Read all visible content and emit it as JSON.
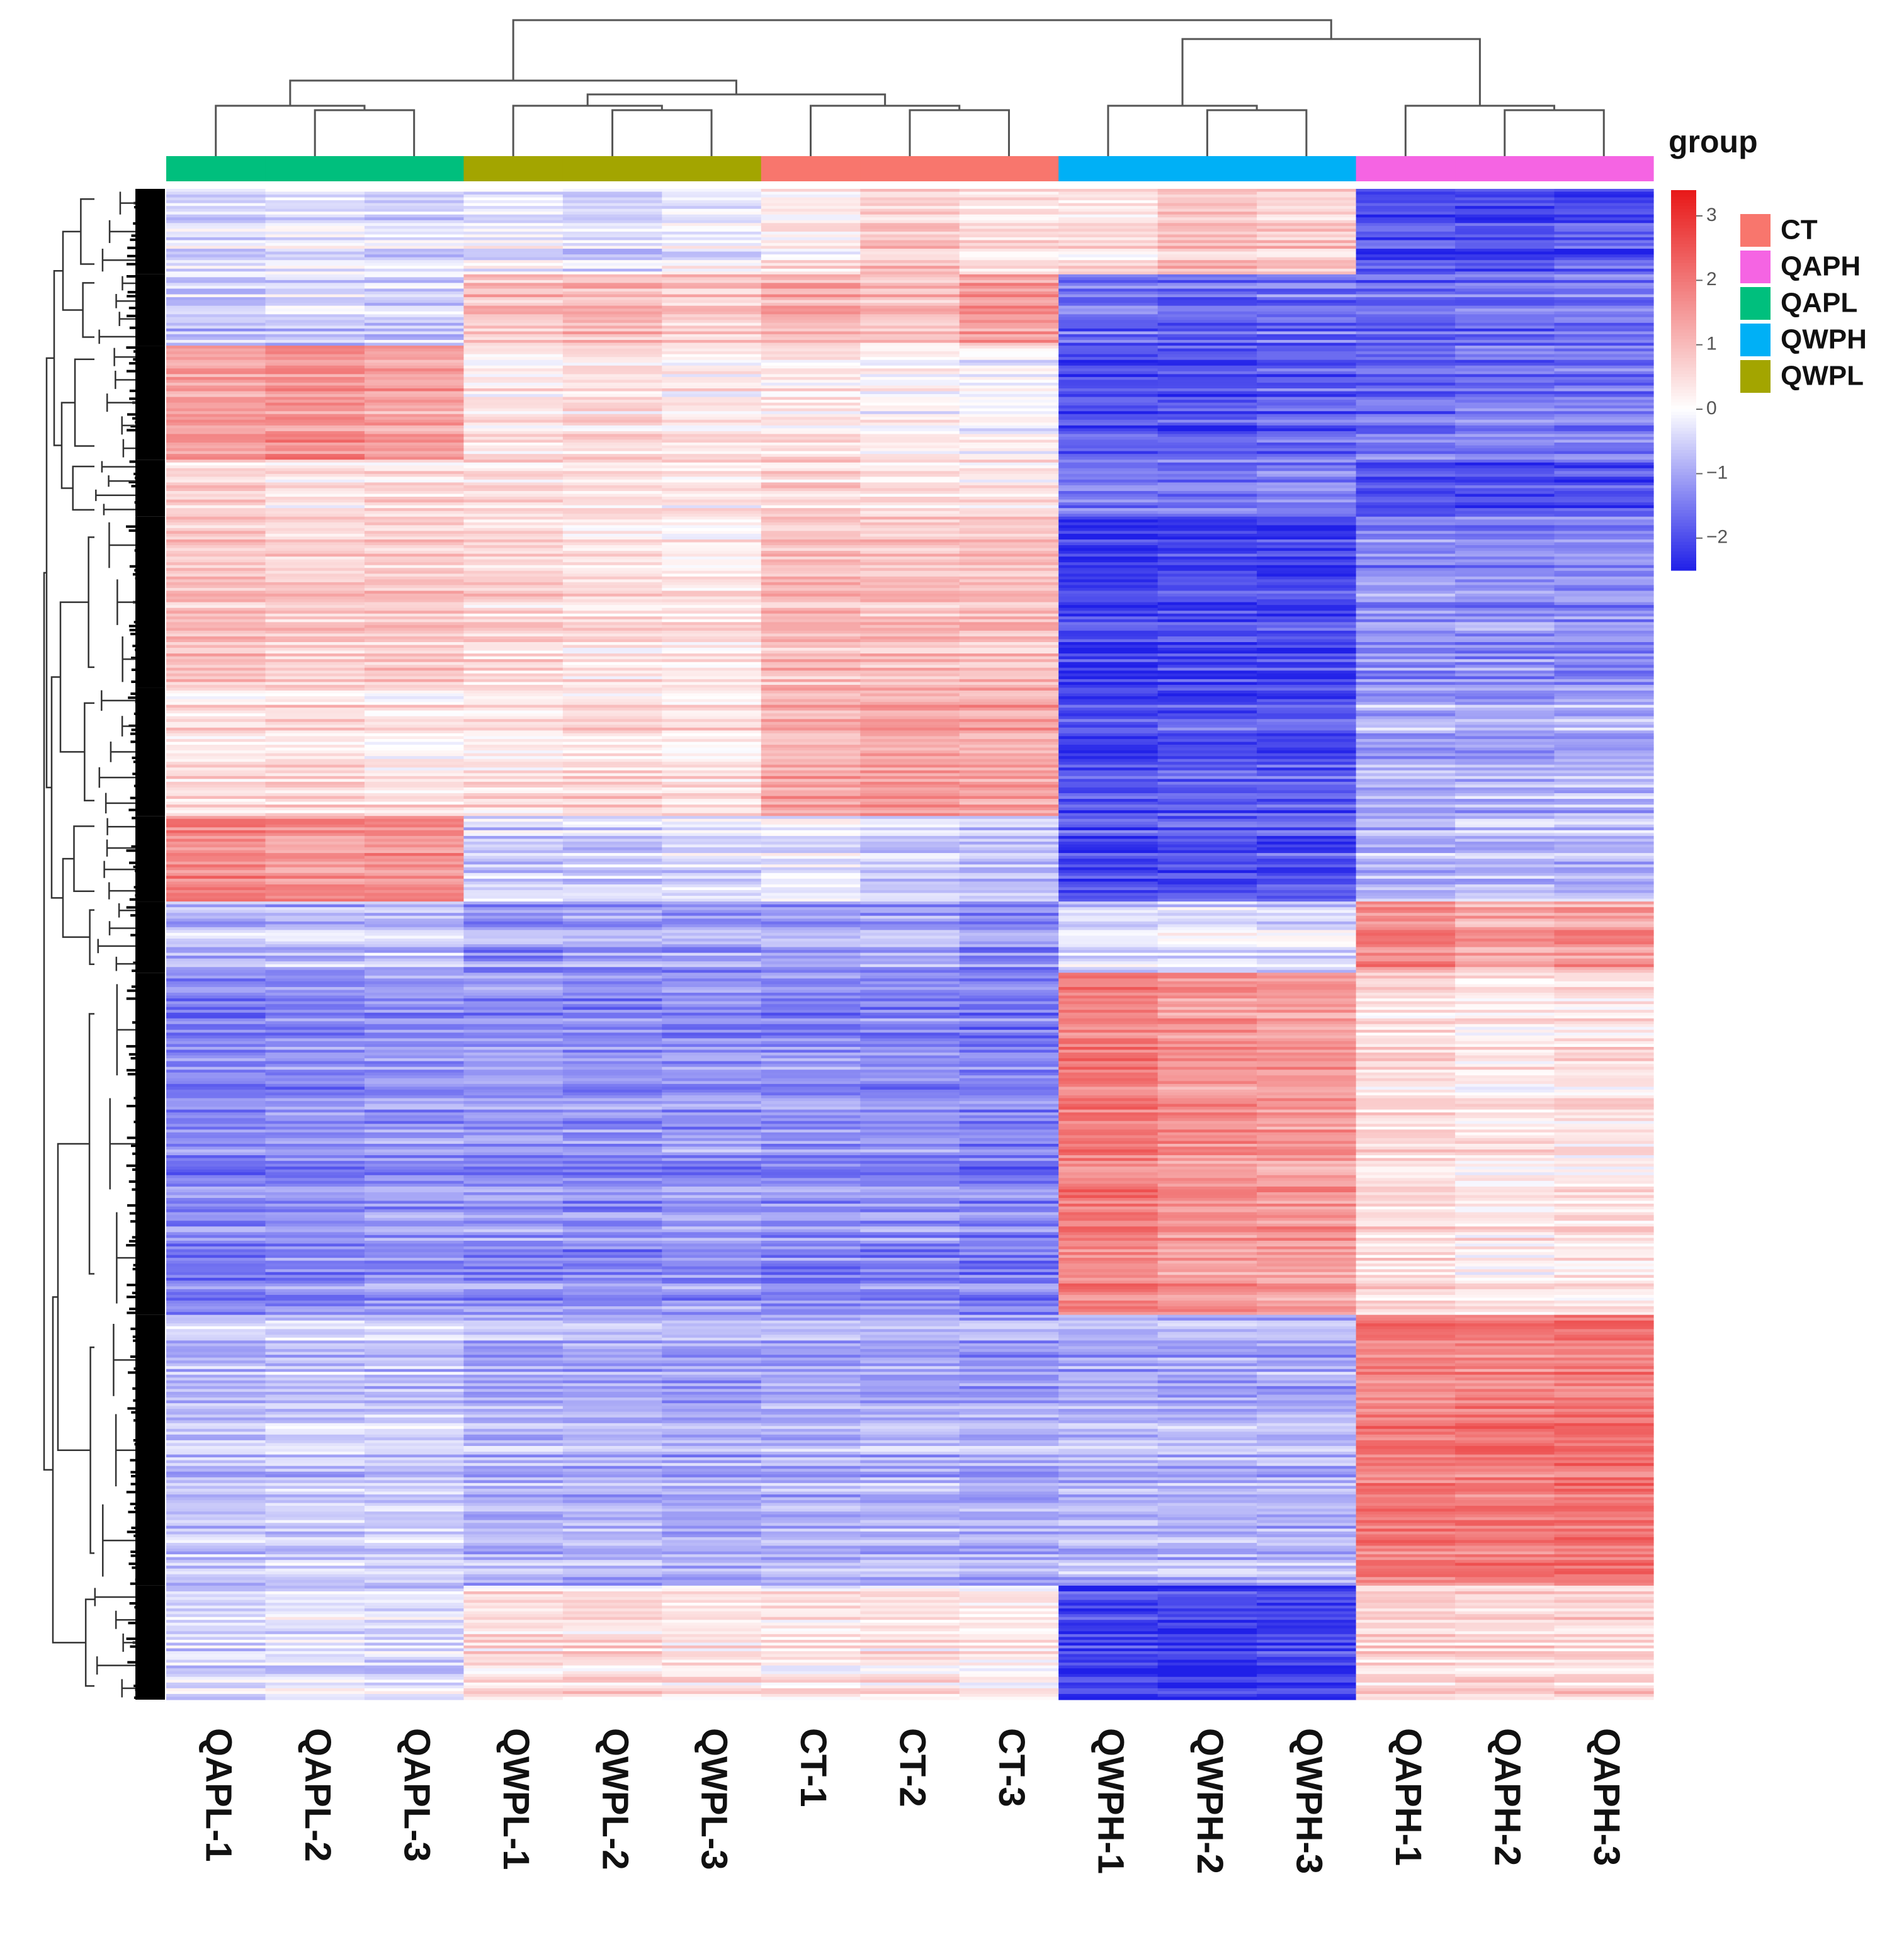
{
  "chart_data": {
    "type": "heatmap",
    "title": "",
    "xlabel": "",
    "ylabel": "",
    "columns": [
      "QAPL-1",
      "QAPL-2",
      "QAPL-3",
      "QWPL-1",
      "QWPL-2",
      "QWPL-3",
      "CT-1",
      "CT-2",
      "CT-3",
      "QWPH-1",
      "QWPH-2",
      "QWPH-3",
      "QAPH-1",
      "QAPH-2",
      "QAPH-3"
    ],
    "column_groups": [
      "QAPL",
      "QAPL",
      "QAPL",
      "QWPL",
      "QWPL",
      "QWPL",
      "CT",
      "CT",
      "CT",
      "QWPH",
      "QWPH",
      "QWPH",
      "QAPH",
      "QAPH",
      "QAPH"
    ],
    "group_legend": {
      "title": "group",
      "entries": [
        {
          "label": "CT",
          "color": "#F8766D"
        },
        {
          "label": "QAPH",
          "color": "#F564E3"
        },
        {
          "label": "QAPL",
          "color": "#00BF7D"
        },
        {
          "label": "QWPH",
          "color": "#00B0F6"
        },
        {
          "label": "QWPL",
          "color": "#A3A500"
        }
      ]
    },
    "color_scale": {
      "min": -2.5,
      "max": 3.4,
      "low_color": "#2020E8",
      "mid_color": "#FFFFFF",
      "high_color": "#E81818",
      "ticks": [
        3,
        2,
        1,
        0,
        -1,
        -2
      ],
      "tick_labels": [
        "3",
        "2",
        "1",
        "0",
        "−1",
        "−2"
      ]
    },
    "row_clusters": [
      {
        "rows": 30,
        "values": [
          -0.3,
          -0.2,
          -0.4,
          -0.2,
          -0.4,
          -0.1,
          0.3,
          0.8,
          0.5,
          0.5,
          1.0,
          0.8,
          -1.9,
          -2.0,
          -1.9
        ]
      },
      {
        "rows": 25,
        "values": [
          -0.6,
          -0.5,
          -0.5,
          0.9,
          1.0,
          0.8,
          1.2,
          0.9,
          1.5,
          -1.6,
          -1.7,
          -1.6,
          -1.6,
          -1.6,
          -1.5
        ]
      },
      {
        "rows": 40,
        "values": [
          1.5,
          1.6,
          1.4,
          0.3,
          0.5,
          0.3,
          0.3,
          0.1,
          0.0,
          -1.9,
          -1.9,
          -1.8,
          -1.6,
          -1.5,
          -1.5
        ]
      },
      {
        "rows": 20,
        "values": [
          0.6,
          0.4,
          0.5,
          0.5,
          0.4,
          0.3,
          0.6,
          0.4,
          0.4,
          -1.5,
          -1.5,
          -1.4,
          -2.0,
          -2.0,
          -2.0
        ]
      },
      {
        "rows": 60,
        "values": [
          0.9,
          0.7,
          0.8,
          0.6,
          0.4,
          0.3,
          1.0,
          0.9,
          0.9,
          -2.2,
          -2.1,
          -2.1,
          -1.3,
          -1.3,
          -1.3
        ]
      },
      {
        "rows": 45,
        "values": [
          0.5,
          0.6,
          0.4,
          0.5,
          0.6,
          0.5,
          1.3,
          1.5,
          1.4,
          -1.9,
          -1.8,
          -1.8,
          -0.9,
          -0.9,
          -0.8
        ]
      },
      {
        "rows": 30,
        "values": [
          1.8,
          1.6,
          1.6,
          -0.5,
          -0.5,
          -0.4,
          -0.2,
          -0.5,
          -0.6,
          -2.0,
          -1.9,
          -1.9,
          -0.8,
          -0.7,
          -0.8
        ]
      },
      {
        "rows": 25,
        "values": [
          -0.8,
          -0.8,
          -0.6,
          -1.2,
          -1.1,
          -1.1,
          -1.1,
          -1.0,
          -1.3,
          -0.4,
          -0.3,
          -0.4,
          1.7,
          1.3,
          1.5
        ]
      },
      {
        "rows": 120,
        "values": [
          -1.4,
          -1.3,
          -1.2,
          -1.2,
          -1.3,
          -1.2,
          -1.3,
          -1.3,
          -1.4,
          1.9,
          1.6,
          1.5,
          0.5,
          0.3,
          0.4
        ]
      },
      {
        "rows": 95,
        "values": [
          -0.7,
          -0.6,
          -0.6,
          -0.9,
          -0.9,
          -1.0,
          -0.9,
          -0.9,
          -1.0,
          -0.9,
          -0.9,
          -0.9,
          1.9,
          1.9,
          2.0
        ]
      },
      {
        "rows": 40,
        "values": [
          -0.4,
          -0.3,
          -0.4,
          0.5,
          0.5,
          0.4,
          0.3,
          0.4,
          0.2,
          -2.1,
          -2.2,
          -2.1,
          0.6,
          0.6,
          0.6
        ]
      }
    ]
  }
}
